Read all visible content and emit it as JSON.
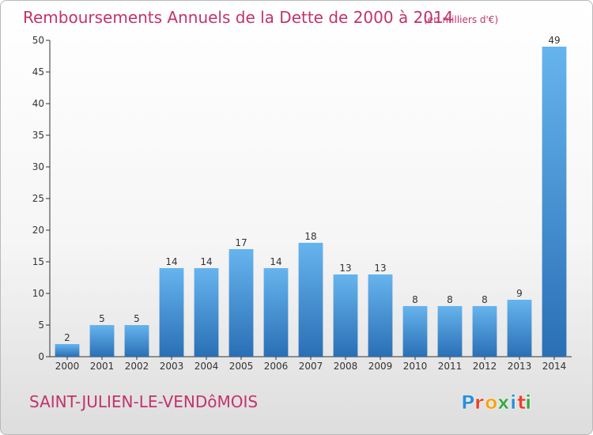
{
  "chart_data": {
    "type": "bar",
    "title": "Remboursements Annuels de la Dette de 2000 à 2014",
    "subtitle": "(en milliers d'€)",
    "xlabel": "",
    "ylabel": "",
    "categories": [
      "2000",
      "2001",
      "2002",
      "2003",
      "2004",
      "2005",
      "2006",
      "2007",
      "2008",
      "2009",
      "2010",
      "2011",
      "2012",
      "2013",
      "2014"
    ],
    "values": [
      2,
      5,
      5,
      14,
      14,
      17,
      14,
      18,
      13,
      13,
      8,
      8,
      8,
      9,
      49
    ],
    "ylim": [
      0,
      50
    ],
    "yticks": [
      0,
      5,
      10,
      15,
      20,
      25,
      30,
      35,
      40,
      45,
      50
    ],
    "grid": false,
    "legend": "none",
    "bar_color": "#3a8fd8",
    "bar_color_light": "#66b4ee",
    "bar_color_dark": "#2a6fb5"
  },
  "footer": {
    "commune": "SAINT-JULIEN-LE-VENDôMOIS",
    "logo_text": "Proxiti"
  }
}
